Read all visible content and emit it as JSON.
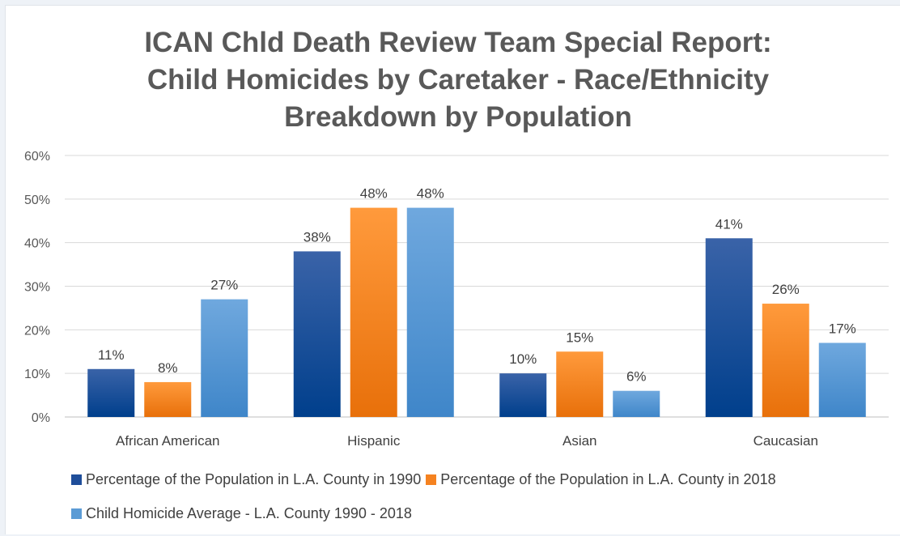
{
  "chart_data": {
    "type": "bar",
    "title": [
      "ICAN Chld Death Review Team Special Report:",
      "Child Homicides by Caretaker - Race/Ethnicity",
      "Breakdown by Population"
    ],
    "categories": [
      "African American",
      "Hispanic",
      "Asian",
      "Caucasian"
    ],
    "series": [
      {
        "name": "Percentage of the Population in L.A. County in 1990",
        "values": [
          11,
          38,
          10,
          41
        ],
        "labels": [
          "11%",
          "38%",
          "10%",
          "41%"
        ],
        "color": "#1f4e9a"
      },
      {
        "name": "Percentage of the Population in L.A. County in 2018",
        "values": [
          8,
          48,
          15,
          26
        ],
        "labels": [
          "8%",
          "48%",
          "15%",
          "26%"
        ],
        "color": "#f58220"
      },
      {
        "name": "Child Homicide Average - L.A. County 1990 - 2018",
        "values": [
          27,
          48,
          6,
          17
        ],
        "labels": [
          "27%",
          "48%",
          "6%",
          "17%"
        ],
        "color": "#5b9bd5"
      }
    ],
    "y_ticks": [
      "0%",
      "10%",
      "20%",
      "30%",
      "40%",
      "50%",
      "60%"
    ],
    "ylim": [
      0,
      60
    ],
    "grid": true,
    "legend": "bottom",
    "xlabel": "",
    "ylabel": ""
  }
}
